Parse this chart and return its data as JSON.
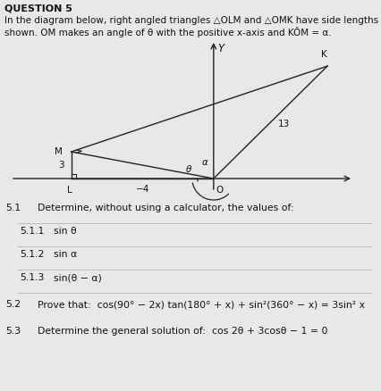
{
  "background_color": "#e8e8e8",
  "title": "QUESTION 5",
  "intro_line1": "In the diagram below, right angled triangles △OLM and △OMK have side lengths as",
  "intro_line2": "shown. OM makes an angle of θ with the positive x-axis and KÔM = α.",
  "q51_label": "5.1",
  "q51_text": "Determine, without using a calculator, the values of:",
  "q511_label": "5.1.1",
  "q511_text": "sin θ",
  "q512_label": "5.1.2",
  "q512_text": "sin α",
  "q513_label": "5.1.3",
  "q513_text": "sin(θ − α)",
  "q52_label": "5.2",
  "q52_text": "Prove that:  cos(90° − 2x) tan(180° + x) + sin²(360° − x) = 3sin² x",
  "q53_label": "5.3",
  "q53_text": "Determine the general solution of:  cos 2θ + 3cosθ − 1 = 0",
  "font_size_title": 8,
  "font_size_intro": 7.5,
  "font_size_label": 7.8,
  "font_size_text": 7.8,
  "font_size_diagram": 7.5,
  "text_color": "#111111",
  "line_color": "#222222"
}
